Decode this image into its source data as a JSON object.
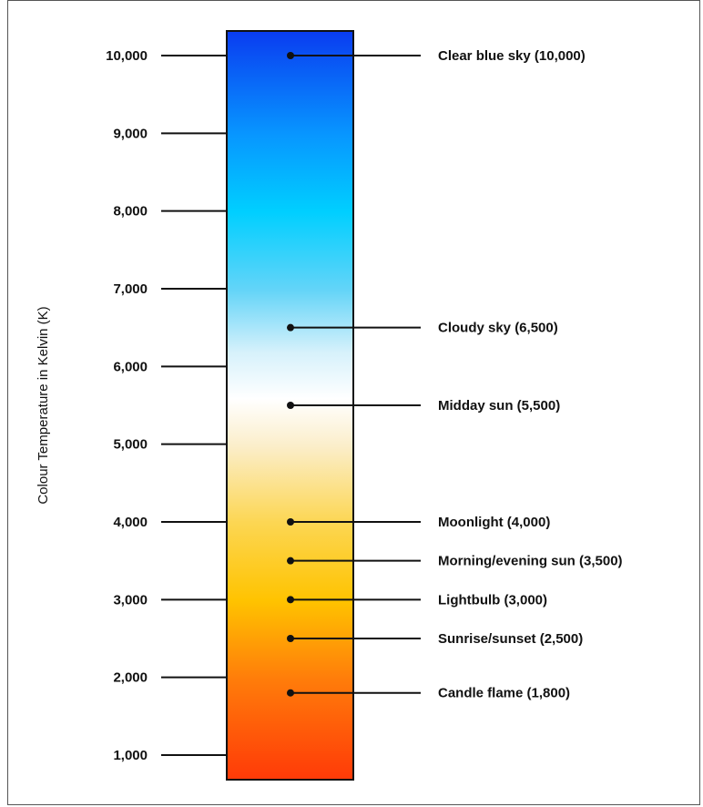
{
  "chart_data": {
    "type": "scale",
    "ylabel": "Colour Temperature in Kelvin (K)",
    "ylim": [
      700,
      10330
    ],
    "ticks": [
      {
        "value": 10000,
        "label": "10,000"
      },
      {
        "value": 9000,
        "label": "9,000"
      },
      {
        "value": 8000,
        "label": "8,000"
      },
      {
        "value": 7000,
        "label": "7,000"
      },
      {
        "value": 6000,
        "label": "6,000"
      },
      {
        "value": 5000,
        "label": "5,000"
      },
      {
        "value": 4000,
        "label": "4,000"
      },
      {
        "value": 3000,
        "label": "3,000"
      },
      {
        "value": 2000,
        "label": "2,000"
      },
      {
        "value": 1000,
        "label": "1,000"
      }
    ],
    "annotations": [
      {
        "value": 10000,
        "label": "Clear blue sky (10,000)"
      },
      {
        "value": 6500,
        "label": "Cloudy sky (6,500)"
      },
      {
        "value": 5500,
        "label": "Midday sun (5,500)"
      },
      {
        "value": 4000,
        "label": "Moonlight (4,000)"
      },
      {
        "value": 3500,
        "label": "Morning/evening sun (3,500)"
      },
      {
        "value": 3000,
        "label": "Lightbulb (3,000)"
      },
      {
        "value": 2500,
        "label": "Sunrise/sunset (2,500)"
      },
      {
        "value": 1800,
        "label": "Candle flame (1,800)"
      }
    ],
    "gradient_stops": [
      {
        "value": 10330,
        "color": "#0a3cf0"
      },
      {
        "value": 9000,
        "color": "#0896ff"
      },
      {
        "value": 8000,
        "color": "#00cfff"
      },
      {
        "value": 7000,
        "color": "#63d4f8"
      },
      {
        "value": 6200,
        "color": "#d6f1fb"
      },
      {
        "value": 5600,
        "color": "#ffffff"
      },
      {
        "value": 5000,
        "color": "#fbeecb"
      },
      {
        "value": 4000,
        "color": "#fcd652"
      },
      {
        "value": 3000,
        "color": "#ffc300"
      },
      {
        "value": 2000,
        "color": "#ff7d0a"
      },
      {
        "value": 700,
        "color": "#ff3a08"
      }
    ]
  }
}
